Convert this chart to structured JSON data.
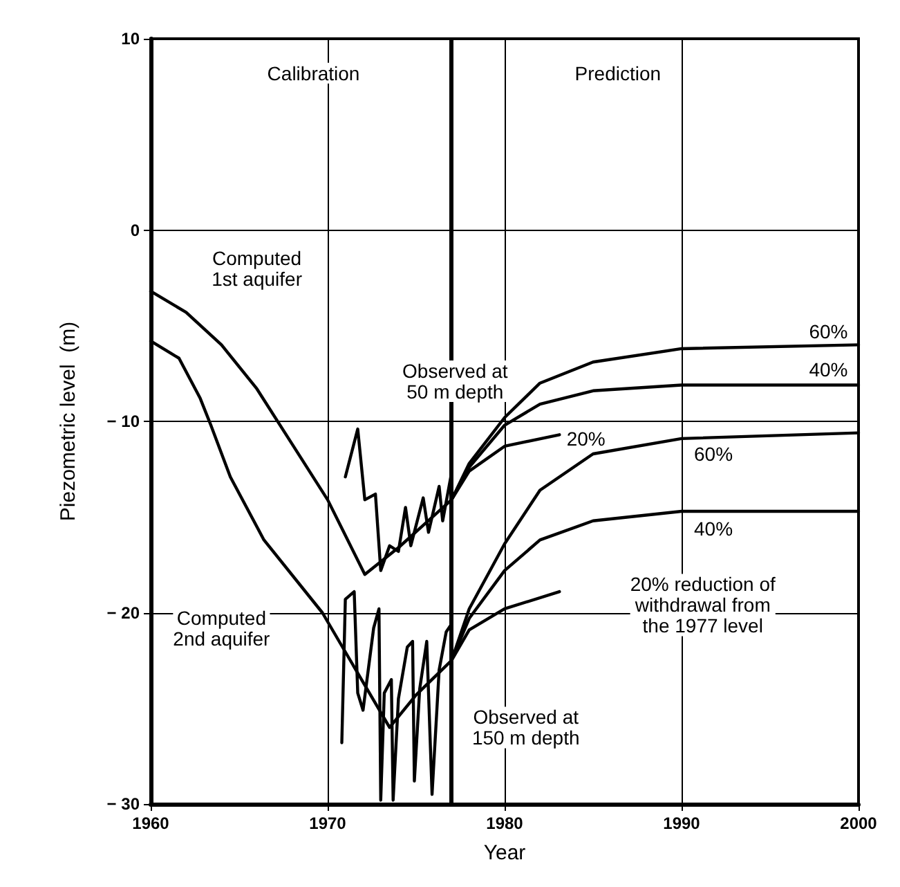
{
  "chart_data": {
    "type": "line",
    "xlabel": "Year",
    "ylabel": "Piezometric level  (m)",
    "xlim": [
      1960,
      2000
    ],
    "xticks": [
      1960,
      1970,
      1980,
      1990,
      2000
    ],
    "ylim": [
      -30,
      10
    ],
    "yticks": [
      -30,
      -20,
      -10,
      0,
      10
    ],
    "grid": true,
    "marker": "none",
    "line_style": "solid",
    "series": [
      {
        "color": "#000000",
        "x": [
          1960,
          1962,
          1964,
          1966,
          1968,
          1970,
          1972.1,
          1974,
          1977,
          1978,
          1980,
          1982,
          1985,
          1990,
          2000
        ],
        "values": [
          -3.2,
          -4.3,
          -6,
          -8.3,
          -11.2,
          -14.1,
          -18,
          -16.6,
          -14.1,
          -12.2,
          -9.8,
          -8,
          -6.9,
          -6.2,
          -6
        ]
      },
      {
        "color": "#000000",
        "x": [
          1960,
          1961.6,
          1962.8,
          1963.4,
          1964.5,
          1966.4,
          1969.7,
          1973.5,
          1975,
          1977,
          1978,
          1980,
          1982,
          1985,
          1990,
          2000
        ],
        "values": [
          -5.8,
          -6.7,
          -8.8,
          -10.2,
          -12.9,
          -16.2,
          -20,
          -26,
          -24.3,
          -22.5,
          -19.8,
          -16.4,
          -13.6,
          -11.7,
          -10.9,
          -10.6
        ]
      },
      {
        "color": "#000000",
        "x": [
          1971,
          1971.7,
          1972.1,
          1972.7,
          1973,
          1973.5,
          1974,
          1974.4,
          1974.7,
          1975.4,
          1975.7,
          1976.3,
          1976.5,
          1977
        ],
        "values": [
          -12.9,
          -10.4,
          -14.1,
          -13.8,
          -17.8,
          -16.5,
          -16.8,
          -14.5,
          -16.5,
          -14,
          -15.8,
          -13.4,
          -15.2,
          -12.7
        ]
      },
      {
        "color": "#000000",
        "x": [
          1970.8,
          1971,
          1971.5,
          1971.7,
          1972,
          1972.6,
          1972.9,
          1973,
          1973.2,
          1973.6,
          1973.7,
          1974,
          1974.5,
          1974.8,
          1974.9,
          1975.2,
          1975.6,
          1975.9,
          1976.3,
          1976.7,
          1977
        ],
        "values": [
          -26.8,
          -19.3,
          -18.9,
          -24.2,
          -25.1,
          -20.8,
          -19.8,
          -29.8,
          -24.2,
          -23.5,
          -29.8,
          -24.5,
          -21.8,
          -21.5,
          -28.8,
          -24,
          -21.5,
          -29.5,
          -23,
          -21,
          -20.6
        ]
      },
      {
        "color": "#000000",
        "x": [
          1977,
          1978,
          1980,
          1982,
          1985,
          1990,
          2000
        ],
        "values": [
          -14.1,
          -12.4,
          -10.2,
          -9.1,
          -8.4,
          -8.1,
          -8.1
        ]
      },
      {
        "color": "#000000",
        "x": [
          1977,
          1978,
          1980,
          1983.1
        ],
        "values": [
          -14.1,
          -12.6,
          -11.3,
          -10.7
        ]
      },
      {
        "color": "#000000",
        "x": [
          1977,
          1978,
          1980,
          1982,
          1985,
          1990,
          2000
        ],
        "values": [
          -22.5,
          -20.3,
          -17.8,
          -16.2,
          -15.2,
          -14.7,
          -14.7
        ]
      },
      {
        "color": "#000000",
        "x": [
          1977,
          1978,
          1980,
          1983.1
        ],
        "values": [
          -22.5,
          -20.9,
          -19.8,
          -18.9
        ]
      }
    ],
    "ref_lines": [
      {
        "axis": "x",
        "value": 1977,
        "label": null,
        "color": "#000000"
      }
    ],
    "annotations": [
      "Calibration",
      "Prediction",
      "Computed\n1st aquifer",
      {
        "text": "Observed at\n50 m depth",
        "x": 1977.2,
        "y": -7.9
      },
      "Computed\n2nd aquifer",
      "Observed at\n150 m depth",
      {
        "text": "60%",
        "x": 1998.3,
        "y": -5.3
      },
      {
        "text": "40%",
        "x": 1998.3,
        "y": -7.3
      },
      {
        "text": "20%",
        "x": 1984.6,
        "y": -10.9
      },
      {
        "text": "60%",
        "x": 1991.8,
        "y": -11.7
      },
      {
        "text": "40%",
        "x": 1991.8,
        "y": -15.6
      },
      "20% reduction of\nwithdrawal from\nthe 1977 level"
    ]
  }
}
